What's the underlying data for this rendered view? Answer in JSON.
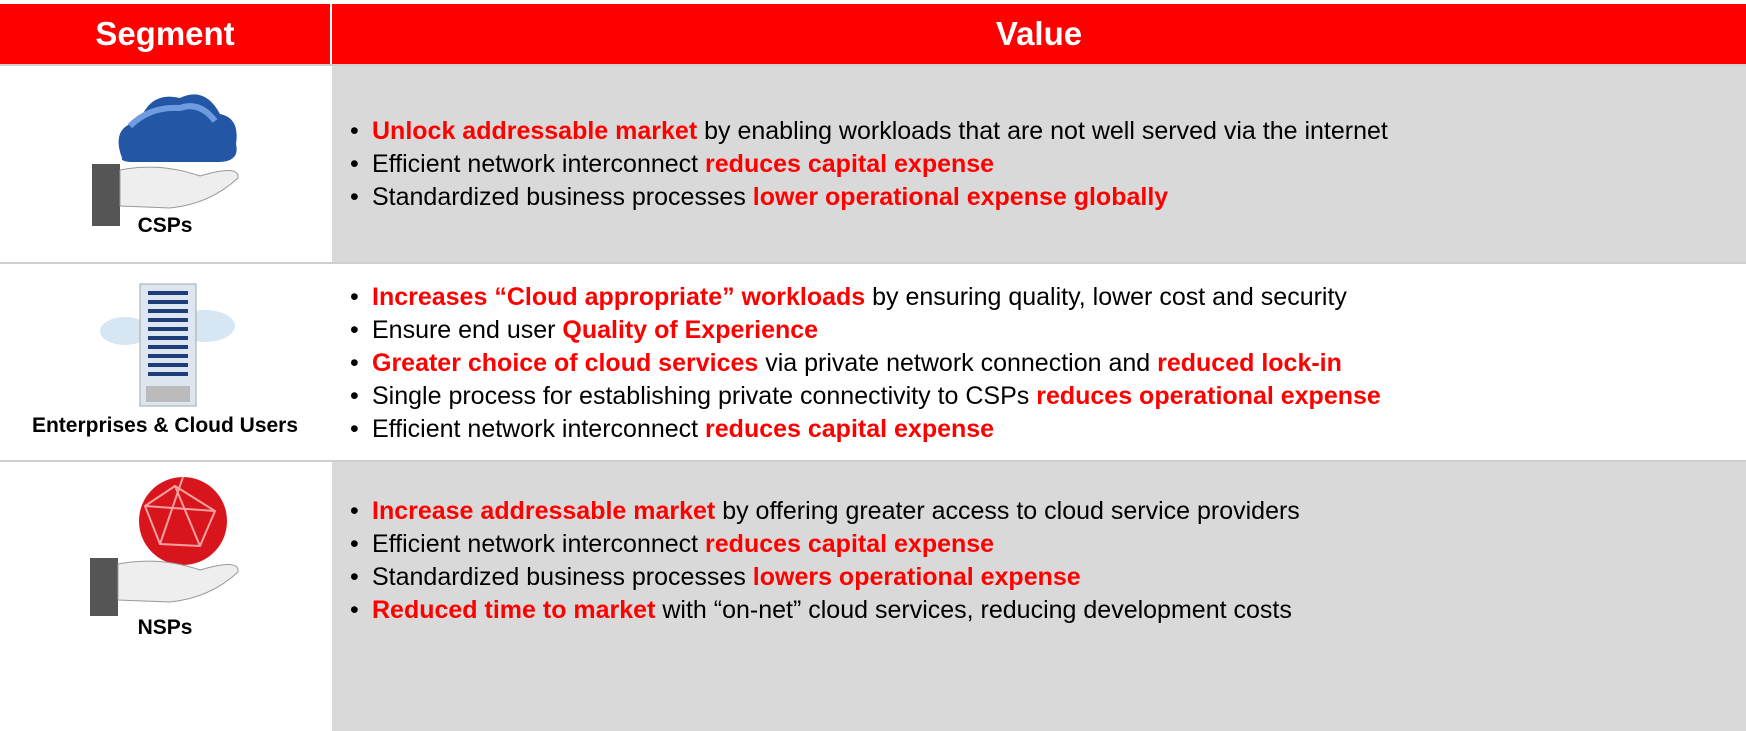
{
  "table": {
    "headers": [
      "Segment",
      "Value"
    ],
    "rows": [
      {
        "segment": "CSPs",
        "bullets": [
          [
            {
              "text": "Unlock addressable market",
              "highlight": true
            },
            {
              "text": " by enabling workloads that are not well served via the internet"
            }
          ],
          [
            {
              "text": "Efficient network interconnect "
            },
            {
              "text": "reduces capital expense",
              "highlight": true
            }
          ],
          [
            {
              "text": "Standardized business processes "
            },
            {
              "text": "lower operational expense globally",
              "highlight": true
            }
          ]
        ]
      },
      {
        "segment": "Enterprises & Cloud Users",
        "bullets": [
          [
            {
              "text": "Increases “Cloud appropriate” workloads",
              "highlight": true
            },
            {
              "text": " by ensuring quality, lower cost and security"
            }
          ],
          [
            {
              "text": "Ensure end user "
            },
            {
              "text": "Quality of Experience",
              "highlight": true
            }
          ],
          [
            {
              "text": "Greater choice of cloud services",
              "highlight": true
            },
            {
              "text": " via private network connection and "
            },
            {
              "text": "reduced lock-in",
              "highlight": true
            }
          ],
          [
            {
              "text": "Single process for establishing private connectivity to CSPs "
            },
            {
              "text": "reduces operational expense",
              "highlight": true
            }
          ],
          [
            {
              "text": "Efficient network interconnect "
            },
            {
              "text": "reduces capital expense",
              "highlight": true
            }
          ]
        ]
      },
      {
        "segment": "NSPs",
        "bullets": [
          [
            {
              "text": "Increase addressable market",
              "highlight": true
            },
            {
              "text": " by offering greater access to cloud service providers"
            }
          ],
          [
            {
              "text": "Efficient network interconnect "
            },
            {
              "text": "reduces capital expense",
              "highlight": true
            }
          ],
          [
            {
              "text": "Standardized business processes "
            },
            {
              "text": "lowers operational expense",
              "highlight": true
            }
          ],
          [
            {
              "text": "Reduced time to market",
              "highlight": true
            },
            {
              "text": " with “on-net” cloud services, reducing development costs"
            }
          ]
        ]
      }
    ]
  }
}
